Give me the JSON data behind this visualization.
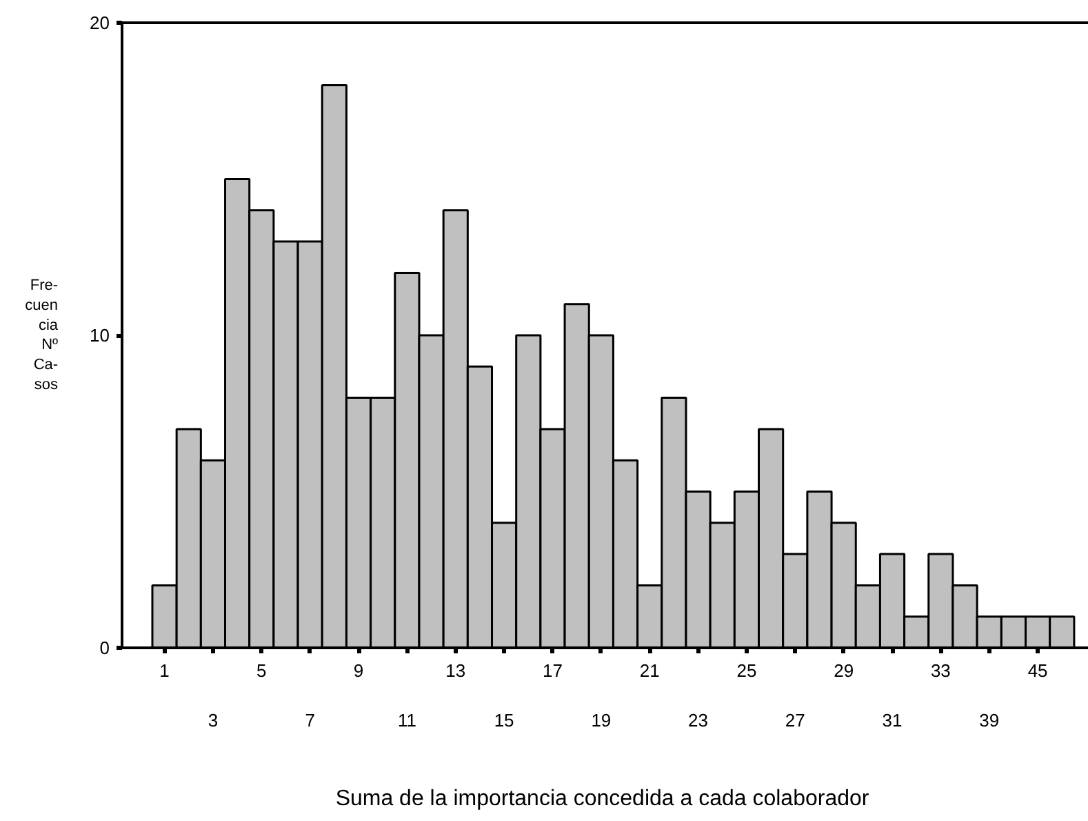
{
  "chart_data": {
    "type": "bar",
    "xlabel": "Suma de la importancia concedida  a cada colaborador",
    "ylabel": "Fre-\ncuen\ncia\nNº\nCa-\nsos",
    "categories": [
      "1",
      null,
      "3",
      null,
      "5",
      null,
      "7",
      null,
      "9",
      null,
      "11",
      null,
      "13",
      null,
      "15",
      null,
      "17",
      null,
      "19",
      null,
      "21",
      null,
      "23",
      null,
      "25",
      null,
      "27",
      null,
      "29",
      null,
      "31",
      null,
      "33",
      null,
      "39",
      null,
      "45",
      null
    ],
    "values": [
      2,
      7,
      6,
      15,
      14,
      13,
      13,
      18,
      8,
      8,
      12,
      10,
      14,
      9,
      4,
      10,
      7,
      11,
      10,
      6,
      2,
      8,
      5,
      4,
      5,
      7,
      3,
      5,
      4,
      2,
      3,
      1,
      3,
      2,
      1,
      1,
      1,
      1
    ],
    "color": "#c0c0c0",
    "ylim": [
      0,
      20
    ],
    "yticks": [
      0,
      10,
      20
    ],
    "grid": false
  }
}
